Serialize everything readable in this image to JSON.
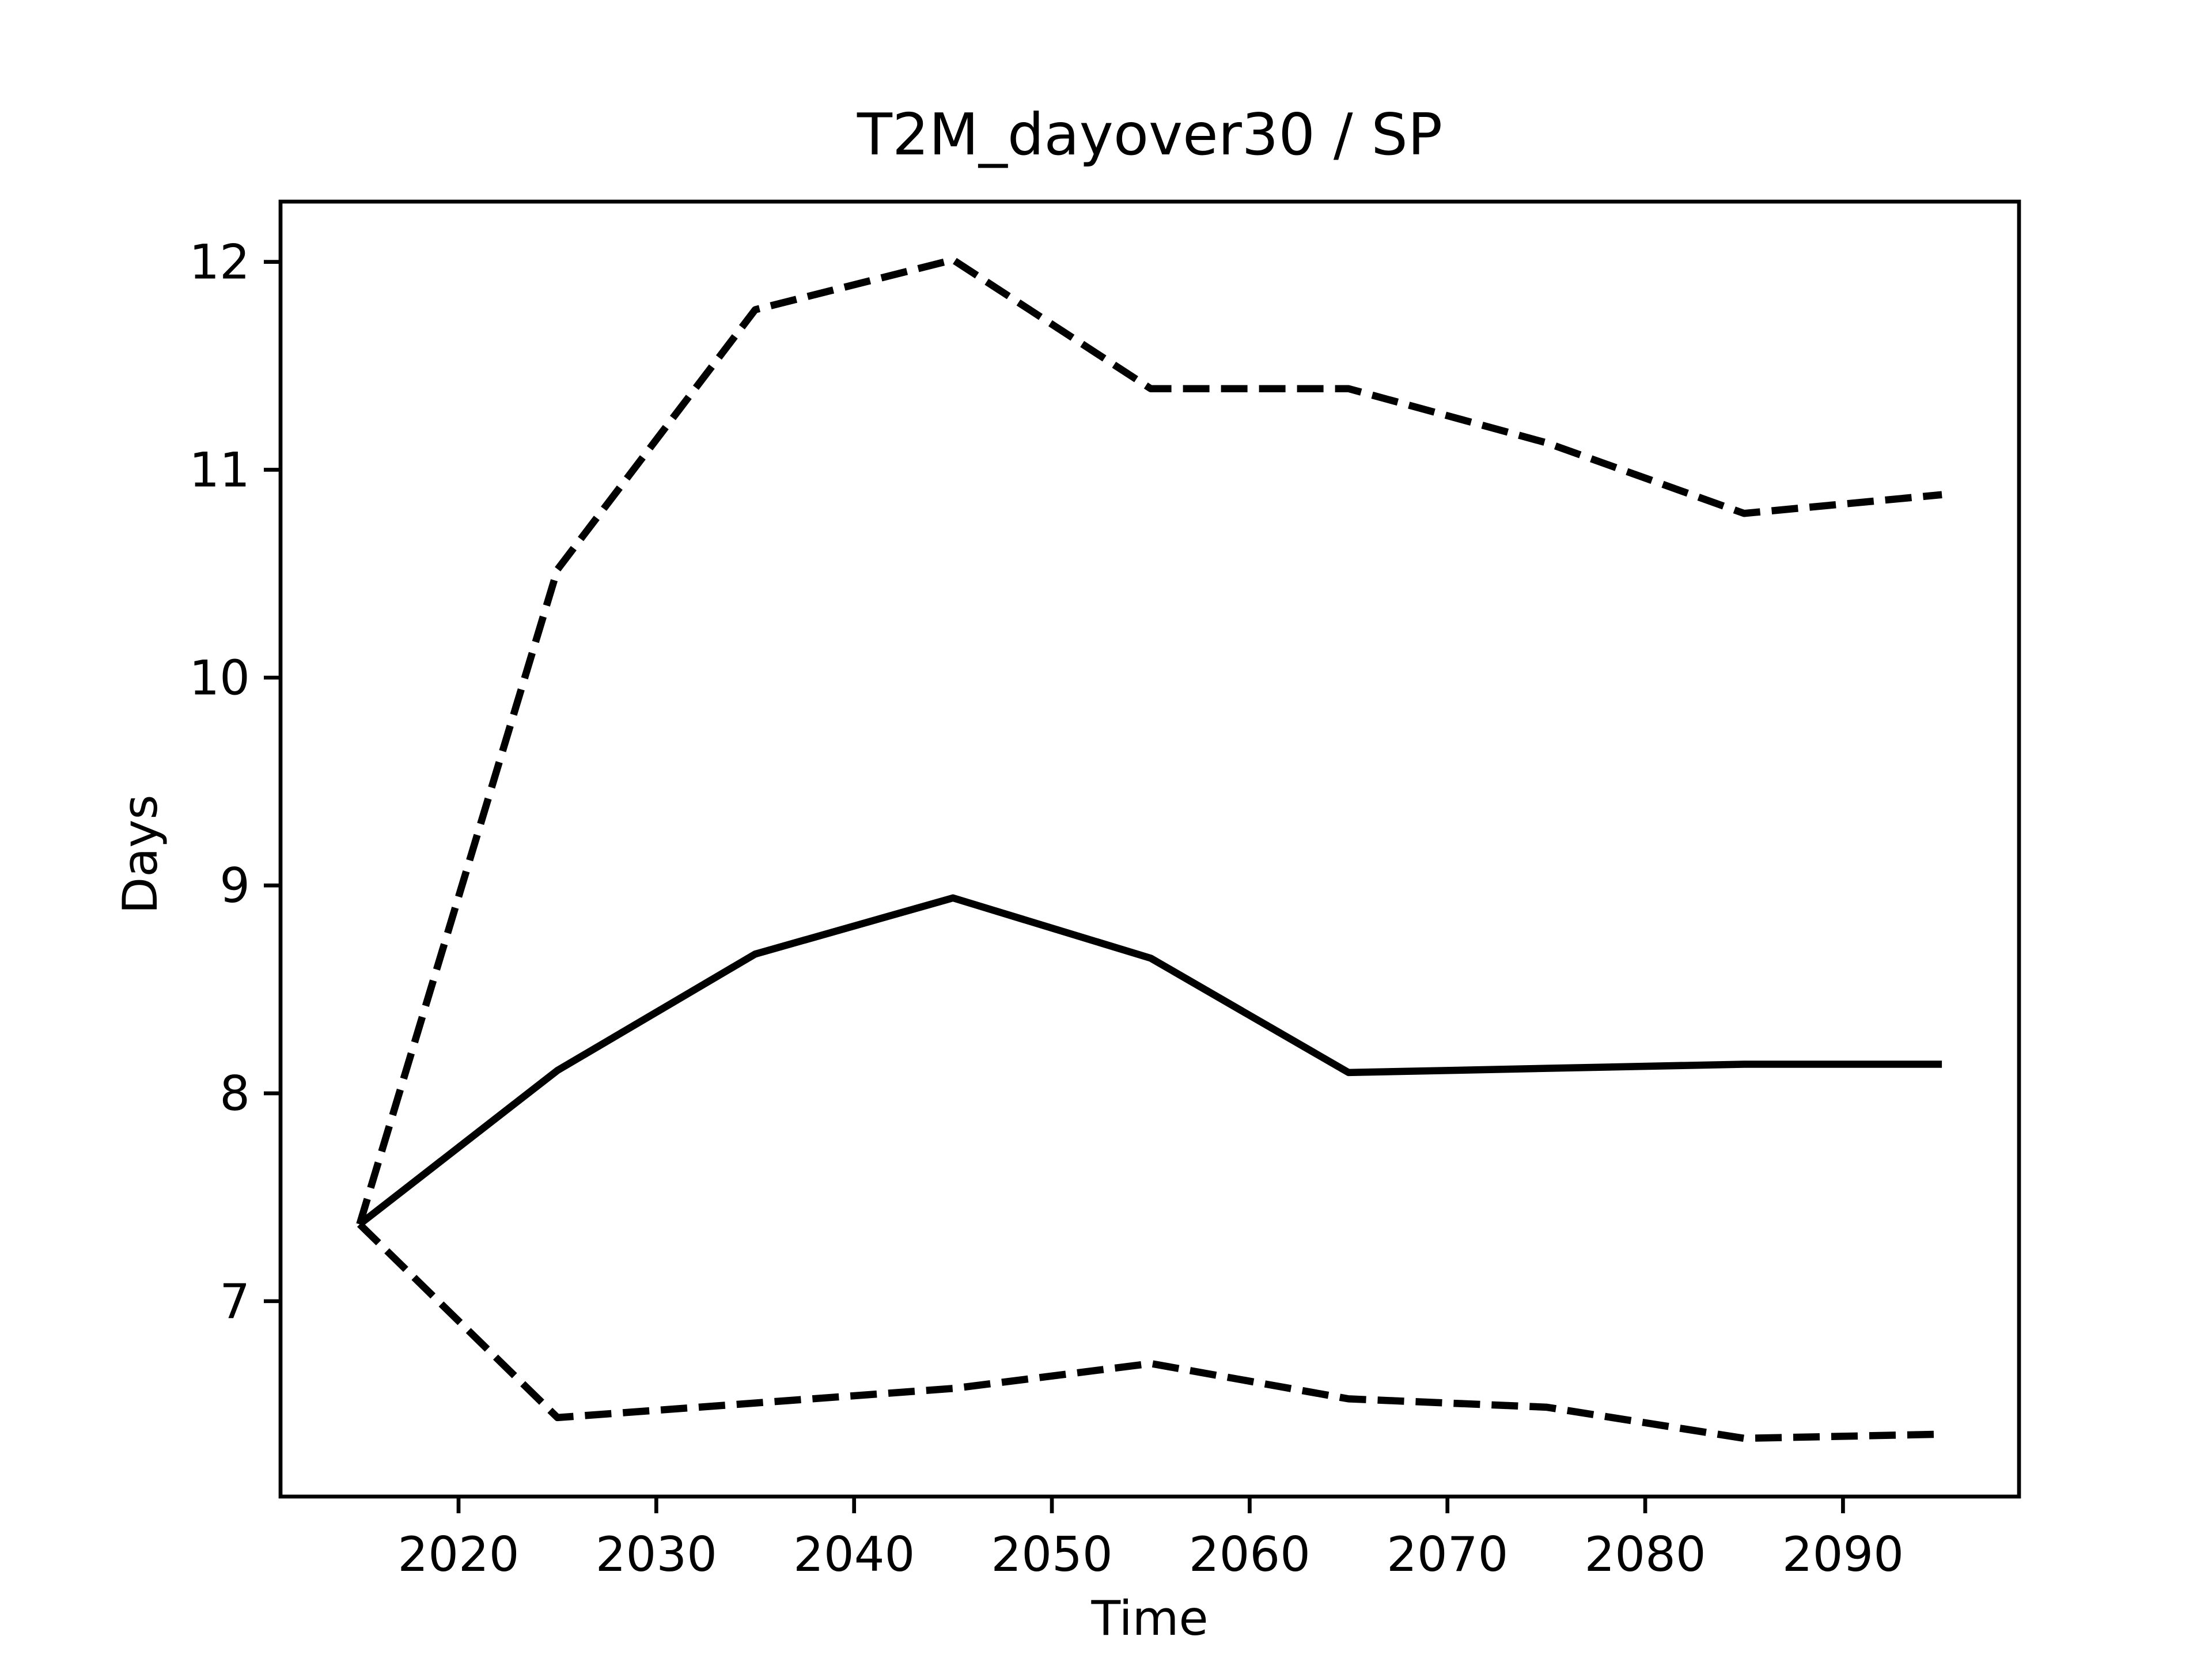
{
  "chart_data": {
    "type": "line",
    "title": "T2M_dayover30 / SP",
    "xlabel": "Time",
    "ylabel": "Days",
    "x": [
      2015,
      2025,
      2035,
      2045,
      2055,
      2065,
      2075,
      2085,
      2095
    ],
    "series": [
      {
        "color": "#000000",
        "dash": true,
        "values": [
          7.37,
          10.52,
          11.77,
          12.01,
          11.39,
          11.39,
          11.13,
          10.79,
          10.88
        ]
      },
      {
        "color": "#000000",
        "dash": false,
        "values": [
          7.37,
          8.11,
          8.67,
          8.94,
          8.65,
          8.1,
          8.12,
          8.14,
          8.14
        ]
      },
      {
        "color": "#000000",
        "dash": true,
        "values": [
          7.37,
          6.44,
          6.51,
          6.58,
          6.7,
          6.53,
          6.49,
          6.34,
          6.36
        ]
      }
    ],
    "xlim": [
      2011,
      2098.9
    ],
    "xticks": [
      2020,
      2030,
      2040,
      2050,
      2060,
      2070,
      2080,
      2090
    ],
    "ylim": [
      6.06,
      12.29
    ],
    "yticks": [
      7,
      8,
      9,
      10,
      11,
      12
    ],
    "grid": false
  }
}
